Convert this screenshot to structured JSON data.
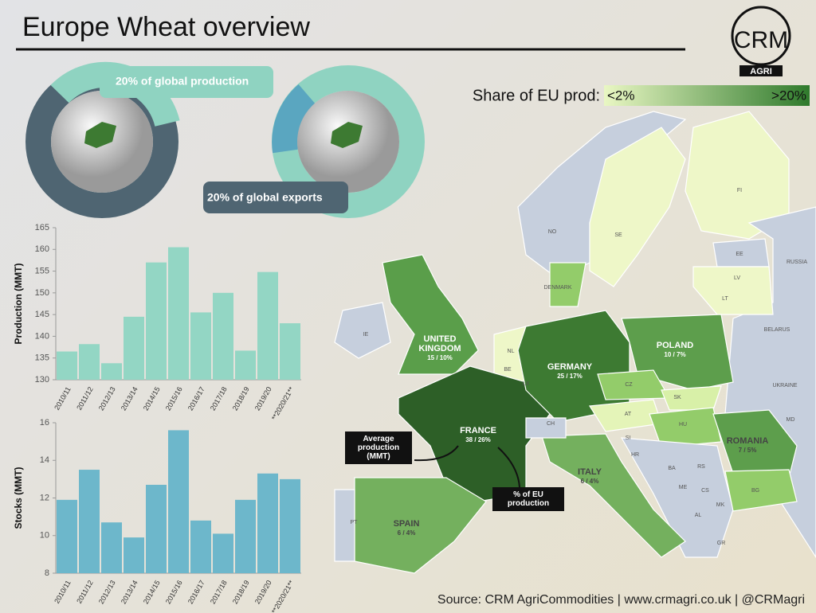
{
  "title": "Europe Wheat overview",
  "logo": {
    "name": "CRM",
    "sub": "AGRI"
  },
  "globes": {
    "production": "20% of global production",
    "exports": "20% of global exports"
  },
  "legend": {
    "title": "Share of EU prod:",
    "low": "<2%",
    "high": ">20%"
  },
  "map": {
    "labels": [
      {
        "name": "NO"
      },
      {
        "name": "SE"
      },
      {
        "name": "FI"
      },
      {
        "name": "EE"
      },
      {
        "name": "LV"
      },
      {
        "name": "LT"
      },
      {
        "name": "RUSSIA"
      },
      {
        "name": "DENMARK"
      },
      {
        "name": "IE"
      },
      {
        "name": "UNITED KINGDOM",
        "detail": "15 / 10%"
      },
      {
        "name": "NL"
      },
      {
        "name": "BE"
      },
      {
        "name": "LX"
      },
      {
        "name": "GERMANY",
        "detail": "25 / 17%"
      },
      {
        "name": "POLAND",
        "detail": "10 / 7%"
      },
      {
        "name": "BELARUS"
      },
      {
        "name": "UKRAINE"
      },
      {
        "name": "MD"
      },
      {
        "name": "CZ"
      },
      {
        "name": "SK"
      },
      {
        "name": "AT"
      },
      {
        "name": "HU"
      },
      {
        "name": "ROMANIA",
        "detail": "7 / 5%"
      },
      {
        "name": "CH"
      },
      {
        "name": "SI"
      },
      {
        "name": "HR"
      },
      {
        "name": "BA"
      },
      {
        "name": "RS"
      },
      {
        "name": "ME"
      },
      {
        "name": "CS"
      },
      {
        "name": "MK"
      },
      {
        "name": "AL"
      },
      {
        "name": "BG"
      },
      {
        "name": "GR"
      },
      {
        "name": "FRANCE",
        "detail": "38 / 26%"
      },
      {
        "name": "ITALY",
        "detail": "6 / 4%"
      },
      {
        "name": "SPAIN",
        "detail": "6 / 4%"
      },
      {
        "name": "PT"
      }
    ],
    "annotations": [
      "Average production (MMT)",
      "% of EU production"
    ]
  },
  "source": "Source: CRM AgriCommodities  |  www.crmagri.co.uk  |  @CRMagri",
  "chart_data": [
    {
      "type": "bar",
      "ylabel": "Production (MMT)",
      "categories": [
        "2010/11",
        "2011/12",
        "2012/13",
        "2013/14",
        "2014/15",
        "2015/16",
        "2016/17",
        "2017/18",
        "2018/19",
        "2019/20",
        "**2020/21**"
      ],
      "values": [
        136.5,
        138.2,
        133.8,
        144.5,
        157,
        160.5,
        145.5,
        150,
        136.7,
        154.8,
        143
      ],
      "color": "#93d6c4",
      "ylim": [
        130,
        165
      ],
      "yticks": [
        130,
        135,
        140,
        145,
        150,
        155,
        160,
        165
      ]
    },
    {
      "type": "bar",
      "ylabel": "Stocks (MMT)",
      "categories": [
        "2010/11",
        "2011/12",
        "2012/13",
        "2013/14",
        "2014/15",
        "2015/16",
        "2016/17",
        "2017/18",
        "2018/19",
        "2019/20",
        "**2020/21**"
      ],
      "values": [
        11.9,
        13.5,
        10.7,
        9.9,
        12.7,
        15.6,
        10.8,
        10.1,
        11.9,
        13.3,
        13.0
      ],
      "color": "#6db7cb",
      "ylim": [
        8,
        16
      ],
      "yticks": [
        8,
        10,
        12,
        14,
        16
      ]
    }
  ]
}
